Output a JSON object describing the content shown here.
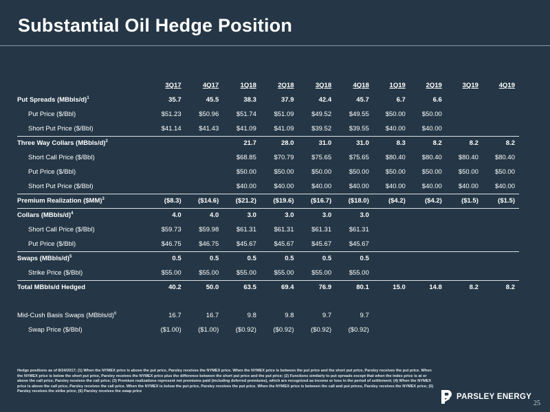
{
  "title": "Substantial Oil Hedge Position",
  "columns": [
    "3Q17",
    "4Q17",
    "1Q18",
    "2Q18",
    "3Q18",
    "4Q18",
    "1Q19",
    "2Q19",
    "3Q19",
    "4Q19"
  ],
  "rows": [
    {
      "label": "Put Spreads (MBbls/d)",
      "sup": "1",
      "style": "group",
      "values": [
        "35.7",
        "45.5",
        "38.3",
        "37.9",
        "42.4",
        "45.7",
        "6.7",
        "6.6",
        "",
        ""
      ]
    },
    {
      "label": "Put Price ($/Bbl)",
      "sup": "",
      "style": "sub",
      "values": [
        "$51.23",
        "$50.96",
        "$51.74",
        "$51.09",
        "$49.52",
        "$49.55",
        "$50.00",
        "$50.00",
        "",
        ""
      ]
    },
    {
      "label": "Short Put Price ($/Bbl)",
      "sup": "",
      "style": "sub sep",
      "values": [
        "$41.14",
        "$41.43",
        "$41.09",
        "$41.09",
        "$39.52",
        "$39.55",
        "$40.00",
        "$40.00",
        "",
        ""
      ]
    },
    {
      "label": "Three Way Collars (MBbls/d)",
      "sup": "2",
      "style": "group",
      "values": [
        "",
        "",
        "21.7",
        "28.0",
        "31.0",
        "31.0",
        "8.3",
        "8.2",
        "8.2",
        "8.2"
      ]
    },
    {
      "label": "Short Call Price ($/Bbl)",
      "sup": "",
      "style": "sub",
      "values": [
        "",
        "",
        "$68.85",
        "$70.79",
        "$75.65",
        "$75.65",
        "$80.40",
        "$80.40",
        "$80.40",
        "$80.40"
      ]
    },
    {
      "label": "Put Price ($/Bbl)",
      "sup": "",
      "style": "sub",
      "values": [
        "",
        "",
        "$50.00",
        "$50.00",
        "$50.00",
        "$50.00",
        "$50.00",
        "$50.00",
        "$50.00",
        "$50.00"
      ]
    },
    {
      "label": "Short Put Price ($/Bbl)",
      "sup": "",
      "style": "sub sep",
      "values": [
        "",
        "",
        "$40.00",
        "$40.00",
        "$40.00",
        "$40.00",
        "$40.00",
        "$40.00",
        "$40.00",
        "$40.00"
      ]
    },
    {
      "label": "Premium Realization ($MM)",
      "sup": "3",
      "style": "group sep",
      "values": [
        "($8.3)",
        "($14.6)",
        "($21.2)",
        "($19.6)",
        "($16.7)",
        "($18.0)",
        "($4.2)",
        "($4.2)",
        "($1.5)",
        "($1.5)"
      ]
    },
    {
      "label": "Collars (MBbls/d)",
      "sup": "4",
      "style": "group",
      "values": [
        "4.0",
        "4.0",
        "3.0",
        "3.0",
        "3.0",
        "3.0",
        "",
        "",
        "",
        ""
      ]
    },
    {
      "label": "Short Call Price ($/Bbl)",
      "sup": "",
      "style": "sub",
      "values": [
        "$59.73",
        "$59.98",
        "$61.31",
        "$61.31",
        "$61.31",
        "$61.31",
        "",
        "",
        "",
        ""
      ]
    },
    {
      "label": "Put Price ($/Bbl)",
      "sup": "",
      "style": "sub sep",
      "values": [
        "$46.75",
        "$46.75",
        "$45.67",
        "$45.67",
        "$45.67",
        "$45.67",
        "",
        "",
        "",
        ""
      ]
    },
    {
      "label": "Swaps (MBbls/d)",
      "sup": "5",
      "style": "group",
      "values": [
        "0.5",
        "0.5",
        "0.5",
        "0.5",
        "0.5",
        "0.5",
        "",
        "",
        "",
        ""
      ]
    },
    {
      "label": "Strike Price ($/Bbl)",
      "sup": "",
      "style": "sub sep",
      "values": [
        "$55.00",
        "$55.00",
        "$55.00",
        "$55.00",
        "$55.00",
        "$55.00",
        "",
        "",
        "",
        ""
      ]
    },
    {
      "label": "Total MBbls/d Hedged",
      "sup": "",
      "style": "group",
      "values": [
        "40.2",
        "50.0",
        "63.5",
        "69.4",
        "76.9",
        "80.1",
        "15.0",
        "14.8",
        "8.2",
        "8.2"
      ]
    },
    {
      "label": "",
      "sup": "",
      "style": "gap",
      "values": [
        "",
        "",
        "",
        "",
        "",
        "",
        "",
        "",
        "",
        ""
      ]
    },
    {
      "label": "Mid-Cush Basis Swaps (MBbls/d)",
      "sup": "6",
      "style": "plain",
      "values": [
        "16.7",
        "16.7",
        "9.8",
        "9.8",
        "9.7",
        "9.7",
        "",
        "",
        "",
        ""
      ]
    },
    {
      "label": "Swap Price ($/Bbl)",
      "sup": "",
      "style": "sub",
      "values": [
        "($1.00)",
        "($1.00)",
        "($0.92)",
        "($0.92)",
        "($0.92)",
        "($0.92)",
        "",
        "",
        "",
        ""
      ]
    }
  ],
  "footnote": "Hedge positions as of 8/24/2017; (1) When the NYMEX price is above the put price, Parsley receives the NYMEX price. When the NYMEX price is between the put price and the short put price, Parsley receives the put price. When the NYMEX price is below the short put price, Parsley receives the NYMEX price plus the difference between the short put price and the put price; (2) Functions similarly to put spreads except that when the index price is at or above the call price, Parsley receives the call price; (3) Premium realizations represent net premiums paid (including deferred premiums), which are recognized as income or loss in the period of settlement; (4) When the NYMEX price is above the call price, Parsley receives the call price. When the NYMEX is below the put price, Parsley receives the put price. When the NYMEX price is between the call and put prices, Parsley receives the NYMEX price; (5) Parsley receives the strike price; (6) Parsley receives the swap price",
  "logo": {
    "icon": "parsley-p-logo-icon",
    "text": "PARSLEY ENERGY"
  },
  "page_number": "25"
}
